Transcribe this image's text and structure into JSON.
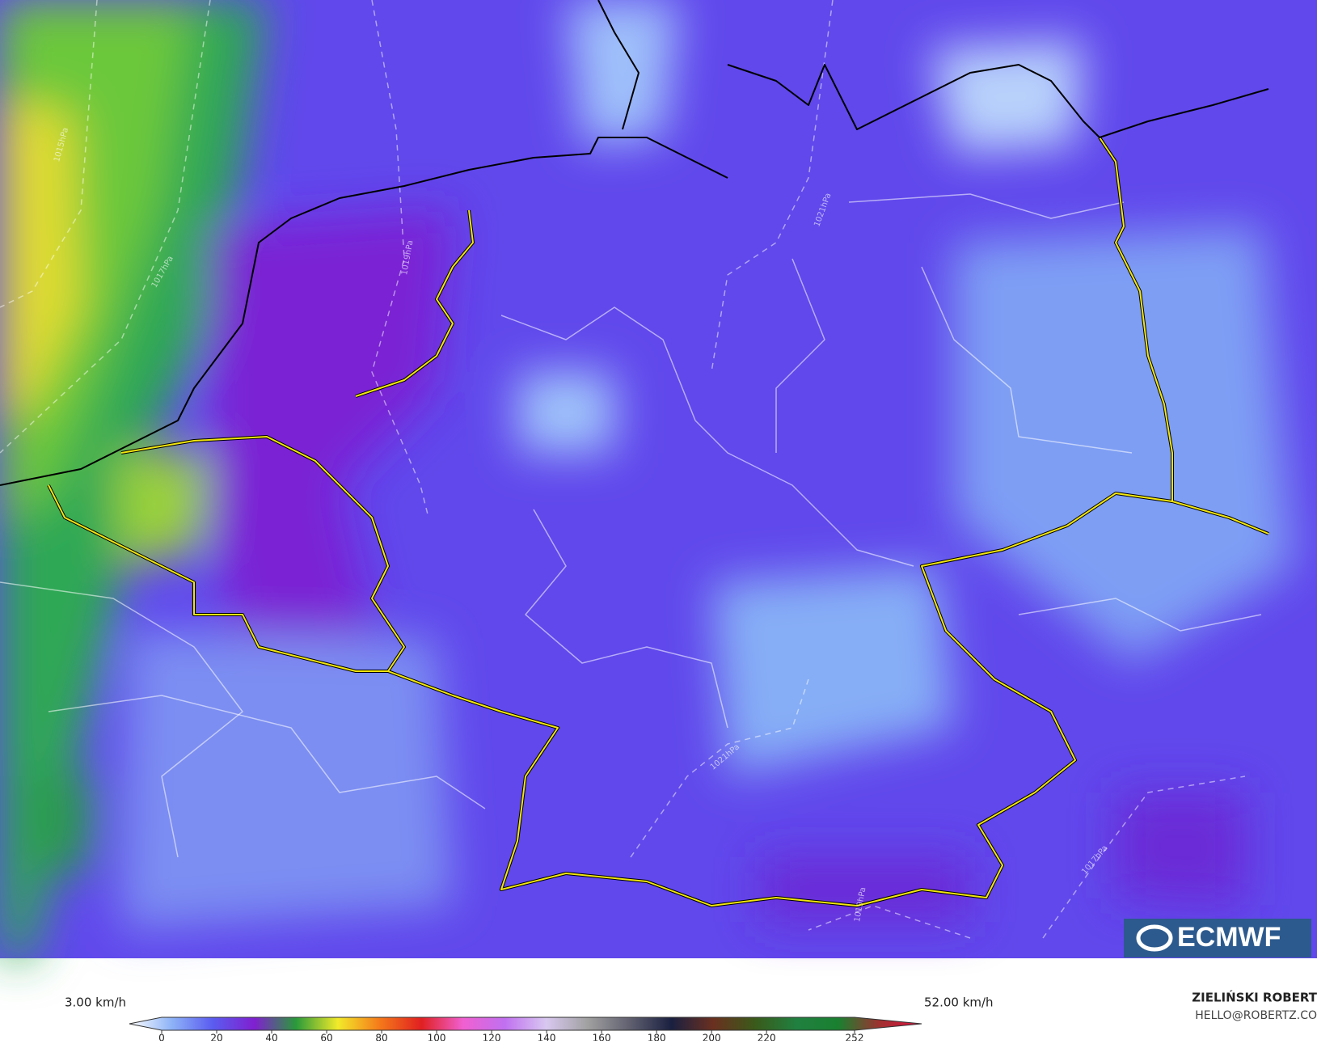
{
  "map": {
    "min_label": "3.00 km/h",
    "max_label": "52.00 km/h",
    "isobar_labels": [
      "1015hPa",
      "1017hPa",
      "1019hPa",
      "1021hPa",
      "1021hPa",
      "1019hPa",
      "1017hPa"
    ]
  },
  "colorbar": {
    "lim": [
      0,
      252
    ],
    "ticks": [
      0,
      20,
      40,
      60,
      80,
      100,
      120,
      140,
      160,
      180,
      200,
      220,
      252
    ],
    "colors": [
      "#ffffff",
      "#8fb4f7",
      "#5a5cf0",
      "#8020d0",
      "#2a9a3a",
      "#f2ea2a",
      "#f57a1a",
      "#e02020",
      "#f060d0",
      "#c070f0",
      "#d8c8f0",
      "#a0a0a0",
      "#606070",
      "#1a2040",
      "#6a3020",
      "#3a5a1a",
      "#208040",
      "#1a8030",
      "#a03030",
      "#e01040"
    ]
  },
  "credit": {
    "author": "ZIELIŃSKI ROBERT",
    "email": "HELLO@ROBERTZ.CO"
  },
  "logo": "ECMWF"
}
